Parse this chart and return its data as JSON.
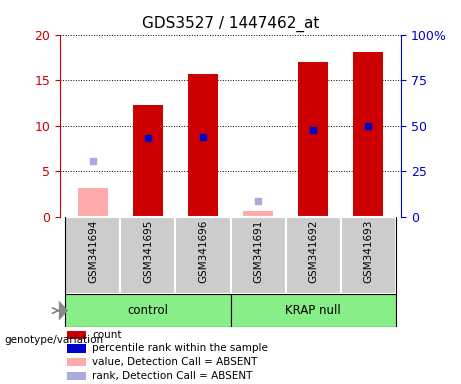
{
  "title": "GDS3527 / 1447462_at",
  "samples": [
    "GSM341694",
    "GSM341695",
    "GSM341696",
    "GSM341691",
    "GSM341692",
    "GSM341693"
  ],
  "count_values": [
    null,
    12.3,
    15.7,
    null,
    17.0,
    18.1
  ],
  "count_absent": [
    3.2,
    null,
    null,
    0.7,
    null,
    null
  ],
  "percentile_rank": [
    null,
    8.7,
    8.8,
    null,
    9.5,
    10.0
  ],
  "percentile_absent": [
    6.1,
    null,
    null,
    1.8,
    null,
    null
  ],
  "groups": [
    {
      "label": "control",
      "indices": [
        0,
        1,
        2
      ],
      "color": "#88ee88"
    },
    {
      "label": "KRAP null",
      "indices": [
        3,
        4,
        5
      ],
      "color": "#88ee88"
    }
  ],
  "ylim_left": [
    0,
    20
  ],
  "ylim_right": [
    0,
    100
  ],
  "yticks_left": [
    0,
    5,
    10,
    15,
    20
  ],
  "yticks_right": [
    0,
    25,
    50,
    75,
    100
  ],
  "ytick_labels_right": [
    "0",
    "25",
    "50",
    "75",
    "100%"
  ],
  "left_axis_color": "#cc0000",
  "right_axis_color": "#0000cc",
  "bar_color_present": "#cc0000",
  "bar_color_absent": "#ffaaaa",
  "marker_color_present": "#0000cc",
  "marker_color_absent": "#aaaadd",
  "sample_box_color": "#cccccc",
  "legend_items": [
    {
      "label": "count",
      "color": "#cc0000"
    },
    {
      "label": "percentile rank within the sample",
      "color": "#0000cc"
    },
    {
      "label": "value, Detection Call = ABSENT",
      "color": "#ffaaaa"
    },
    {
      "label": "rank, Detection Call = ABSENT",
      "color": "#aaaadd"
    }
  ]
}
